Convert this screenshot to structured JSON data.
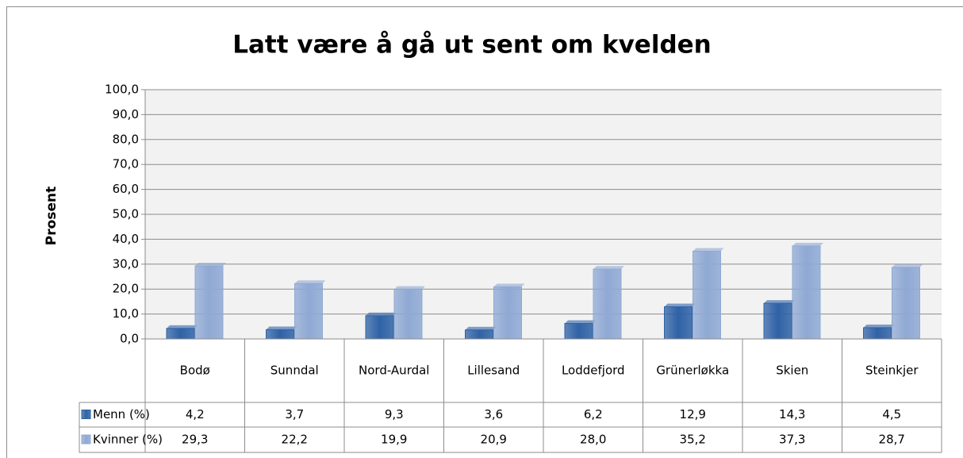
{
  "chart_data": {
    "type": "bar",
    "title": "Latt være å gå ut sent om kvelden",
    "y_label": "Prosent",
    "categories": [
      "Bodø",
      "Sunndal",
      "Nord-Aurdal",
      "Lillesand",
      "Loddefjord",
      "Grünerløkka",
      "Skien",
      "Steinkjer"
    ],
    "series": [
      {
        "name": "Menn (%)",
        "color": "#2f62a6",
        "values": [
          4.2,
          3.7,
          9.3,
          3.6,
          6.2,
          12.9,
          14.3,
          4.5
        ],
        "value_labels": [
          "4,2",
          "3,7",
          "9,3",
          "3,6",
          "6,2",
          "12,9",
          "14,3",
          "4,5"
        ]
      },
      {
        "name": "Kvinner (%)",
        "color": "#8fa9d4",
        "values": [
          29.3,
          22.2,
          19.9,
          20.9,
          28.0,
          35.2,
          37.3,
          28.7
        ],
        "value_labels": [
          "29,3",
          "22,2",
          "19,9",
          "20,9",
          "28,0",
          "35,2",
          "37,3",
          "28,7"
        ]
      }
    ],
    "ylim": [
      0,
      100
    ],
    "yticks": [
      {
        "value": 0,
        "label": "0,0"
      },
      {
        "value": 10,
        "label": "10,0"
      },
      {
        "value": 20,
        "label": "20,0"
      },
      {
        "value": 30,
        "label": "30,0"
      },
      {
        "value": 40,
        "label": "40,0"
      },
      {
        "value": 50,
        "label": "50,0"
      },
      {
        "value": 60,
        "label": "60,0"
      },
      {
        "value": 70,
        "label": "70,0"
      },
      {
        "value": 80,
        "label": "80,0"
      },
      {
        "value": 90,
        "label": "90,0"
      },
      {
        "value": 100,
        "label": "100,0"
      }
    ],
    "grid": true,
    "data_table": true
  }
}
